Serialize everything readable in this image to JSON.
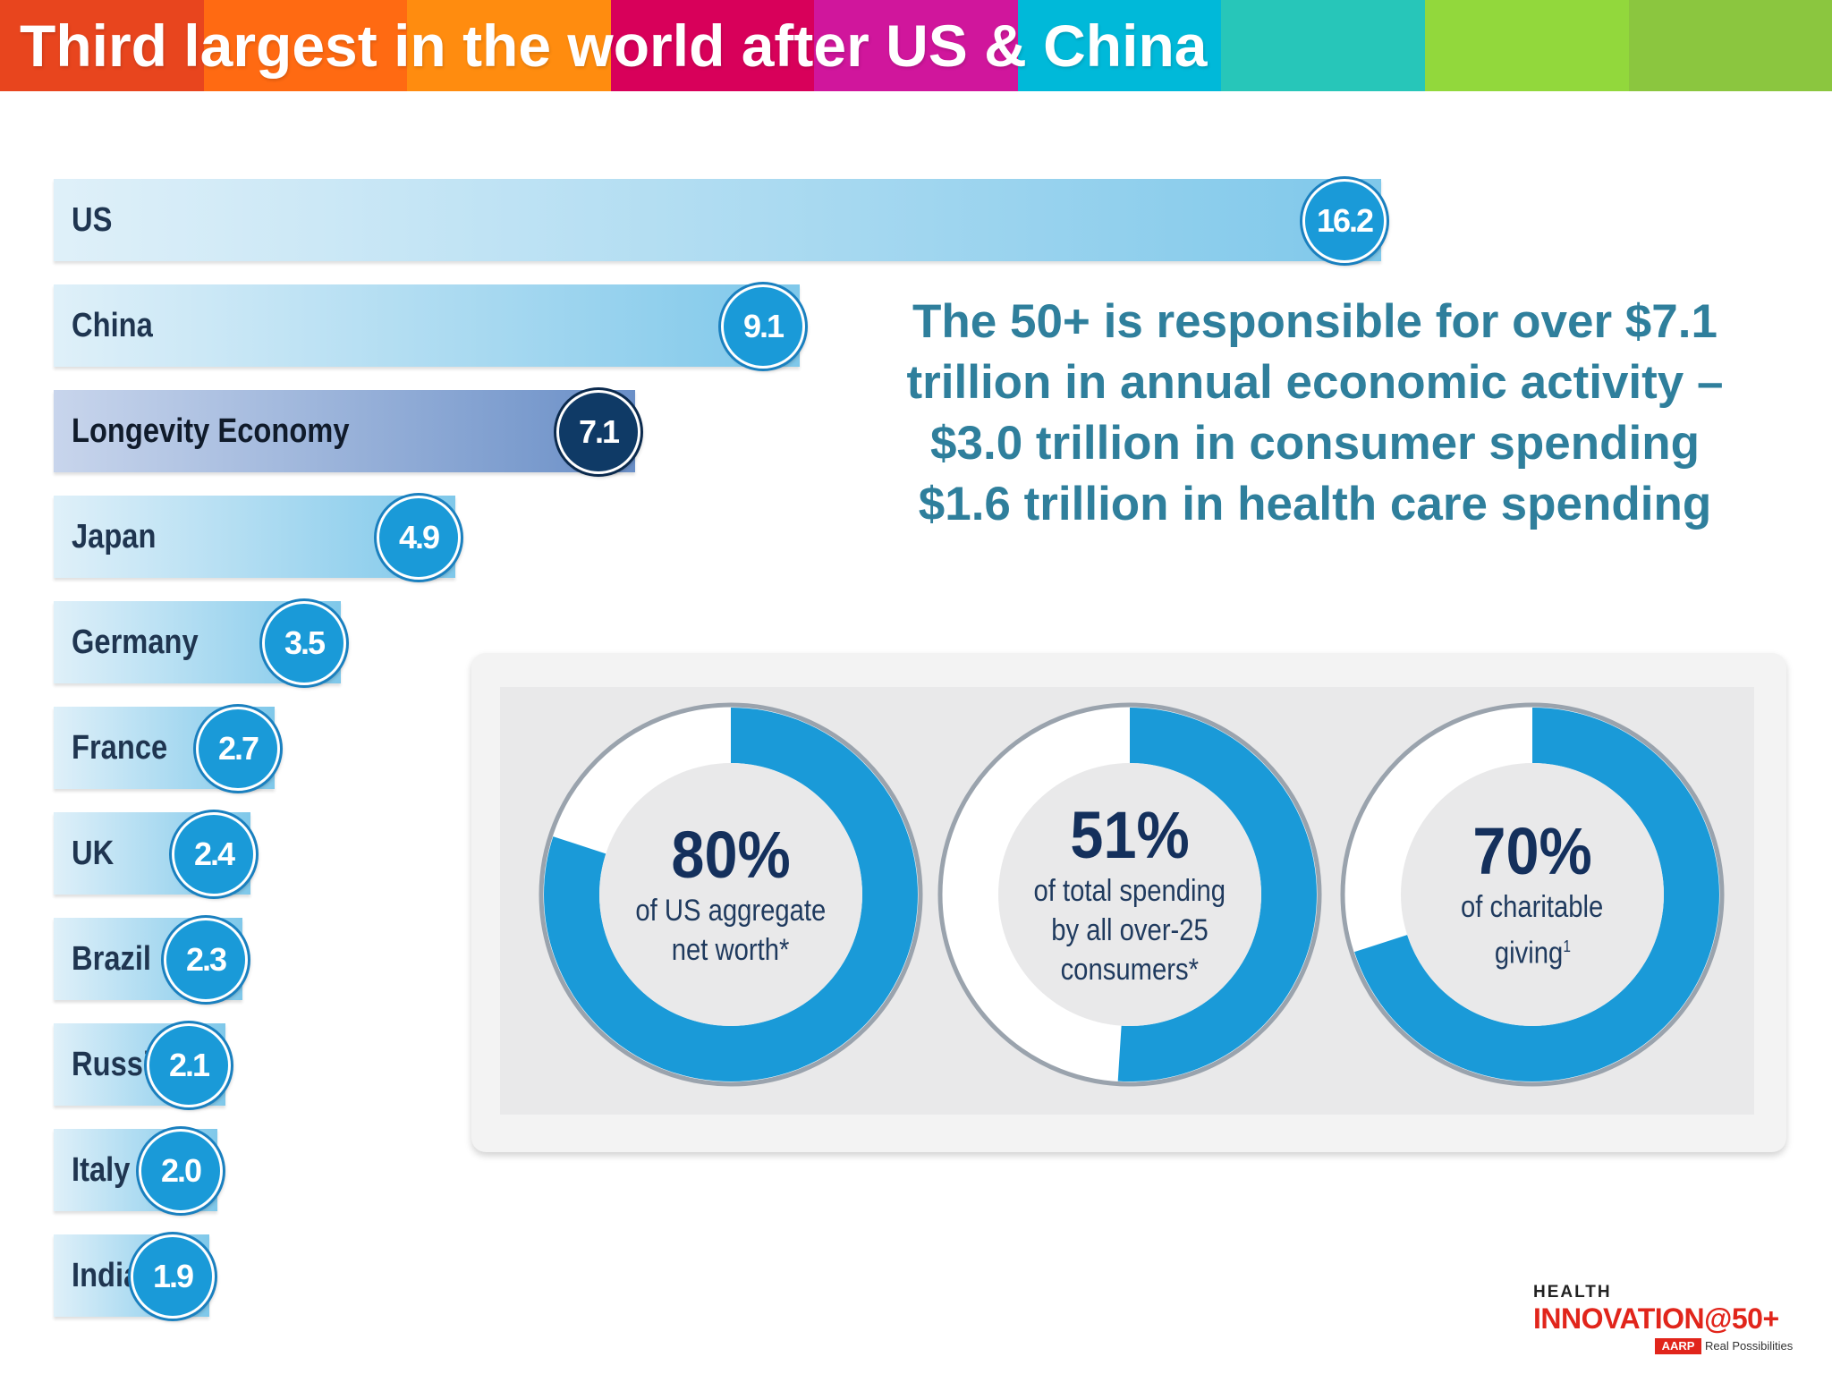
{
  "header": {
    "title": "Third largest in the world after US & China",
    "colors": [
      "#e8451e",
      "#ff6a12",
      "#ff8c0f",
      "#d8005a",
      "#d0169c",
      "#00b9d9",
      "#27c6b9",
      "#92d83c",
      "#8bc63f"
    ]
  },
  "chart_data": {
    "type": "bar",
    "orientation": "horizontal",
    "title": "",
    "xlabel": "",
    "ylabel": "",
    "xlim": [
      0,
      16.2
    ],
    "grid": false,
    "categories": [
      "US",
      "China",
      "Longevity Economy",
      "Japan",
      "Germany",
      "France",
      "UK",
      "Brazil",
      "Russia",
      "Italy",
      "India"
    ],
    "values": [
      16.2,
      9.1,
      7.1,
      4.9,
      3.5,
      2.7,
      2.4,
      2.3,
      2.1,
      2.0,
      1.9
    ],
    "value_labels": [
      "16.2",
      "9.1",
      "7.1",
      "4.9",
      "3.5",
      "2.7",
      "2.4",
      "2.3",
      "2.1",
      "2.0",
      "1.9"
    ],
    "highlight_category": "Longevity Economy",
    "colors": {
      "bar": "#7fc8ea",
      "bar_light": "#dff0f9",
      "highlight_bar": "#6a8fc7",
      "highlight_light": "#c8d5ec",
      "value_badge": "#1a9ad8",
      "highlight_badge": "#0f3a66"
    }
  },
  "headline": {
    "lines": [
      "The 50+ is responsible for over $7.1",
      "trillion in annual economic activity –",
      "$3.0 trillion in consumer spending",
      "$1.6 trillion in health care spending"
    ],
    "color": "#2f7f9c"
  },
  "donuts": [
    {
      "percent": 80,
      "label": "80%",
      "desc": [
        "of US aggregate",
        "net worth*"
      ],
      "sup": ""
    },
    {
      "percent": 51,
      "label": "51%",
      "desc": [
        "of total spending",
        "by all over-25",
        "consumers*"
      ],
      "sup": ""
    },
    {
      "percent": 70,
      "label": "70%",
      "desc": [
        "of charitable",
        "giving"
      ],
      "sup": "1"
    }
  ],
  "donut_colors": {
    "fill": "#1a9ad8",
    "remainder": "#ffffff",
    "rim": "#9aa3ad"
  },
  "logo": {
    "line1": "HEALTH",
    "line2": "INNOVATION@50+",
    "badge": "AARP",
    "tagline": "Real Possibilities"
  }
}
